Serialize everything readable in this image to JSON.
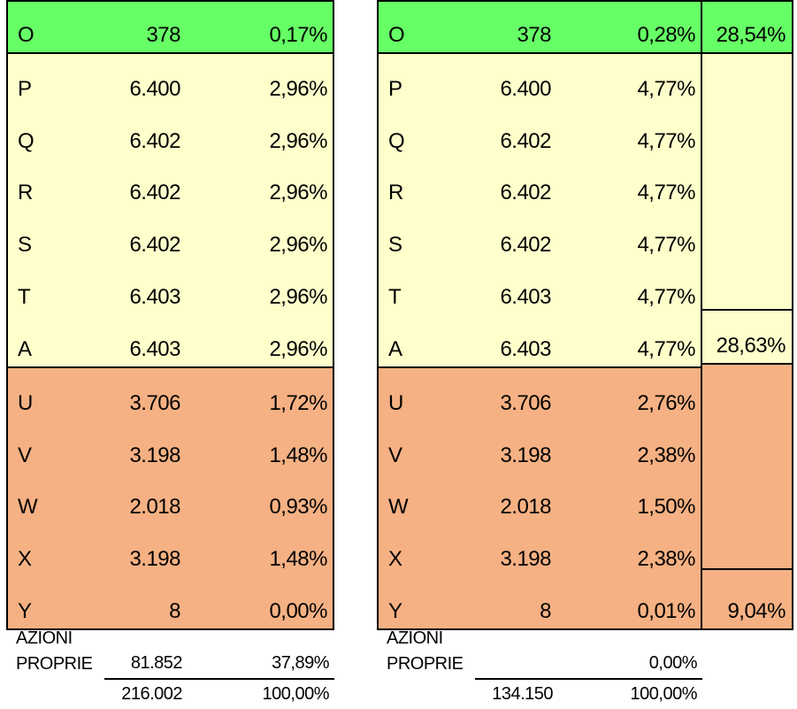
{
  "colors": {
    "green": "#66FF66",
    "cream": "#FFFFCC",
    "orange": "#F5B183",
    "border": "#000000",
    "background": "#FFFFFF"
  },
  "left_table": {
    "rows": [
      {
        "label": "O",
        "value": "378",
        "pct": "0,17%"
      },
      {
        "label": "P",
        "value": "6.400",
        "pct": "2,96%"
      },
      {
        "label": "Q",
        "value": "6.402",
        "pct": "2,96%"
      },
      {
        "label": "R",
        "value": "6.402",
        "pct": "2,96%"
      },
      {
        "label": "S",
        "value": "6.402",
        "pct": "2,96%"
      },
      {
        "label": "T",
        "value": "6.403",
        "pct": "2,96%"
      },
      {
        "label": "A",
        "value": "6.403",
        "pct": "2,96%"
      },
      {
        "label": "U",
        "value": "3.706",
        "pct": "1,72%"
      },
      {
        "label": "V",
        "value": "3.198",
        "pct": "1,48%"
      },
      {
        "label": "W",
        "value": "2.018",
        "pct": "0,93%"
      },
      {
        "label": "X",
        "value": "3.198",
        "pct": "1,48%"
      },
      {
        "label": "Y",
        "value": "8",
        "pct": "0,00%"
      }
    ],
    "footer": {
      "label_line1": "AZIONI",
      "label_line2": "PROPRIE",
      "value": "81.852",
      "pct": "37,89%",
      "total_value": "216.002",
      "total_pct": "100,00%"
    }
  },
  "right_table": {
    "rows": [
      {
        "label": "O",
        "value": "378",
        "pct": "0,28%"
      },
      {
        "label": "P",
        "value": "6.400",
        "pct": "4,77%"
      },
      {
        "label": "Q",
        "value": "6.402",
        "pct": "4,77%"
      },
      {
        "label": "R",
        "value": "6.402",
        "pct": "4,77%"
      },
      {
        "label": "S",
        "value": "6.402",
        "pct": "4,77%"
      },
      {
        "label": "T",
        "value": "6.403",
        "pct": "4,77%"
      },
      {
        "label": "A",
        "value": "6.403",
        "pct": "4,77%"
      },
      {
        "label": "U",
        "value": "3.706",
        "pct": "2,76%"
      },
      {
        "label": "V",
        "value": "3.198",
        "pct": "2,38%"
      },
      {
        "label": "W",
        "value": "2.018",
        "pct": "1,50%"
      },
      {
        "label": "X",
        "value": "3.198",
        "pct": "2,38%"
      },
      {
        "label": "Y",
        "value": "8",
        "pct": "0,01%"
      }
    ],
    "footer": {
      "label_line1": "AZIONI",
      "label_line2": "PROPRIE",
      "value": "",
      "pct": "0,00%",
      "total_value": "134.150",
      "total_pct": "100,00%"
    }
  },
  "summary_column": {
    "green_pct": "28,54%",
    "cream_pct": "28,63%",
    "orange_pct": "9,04%"
  }
}
